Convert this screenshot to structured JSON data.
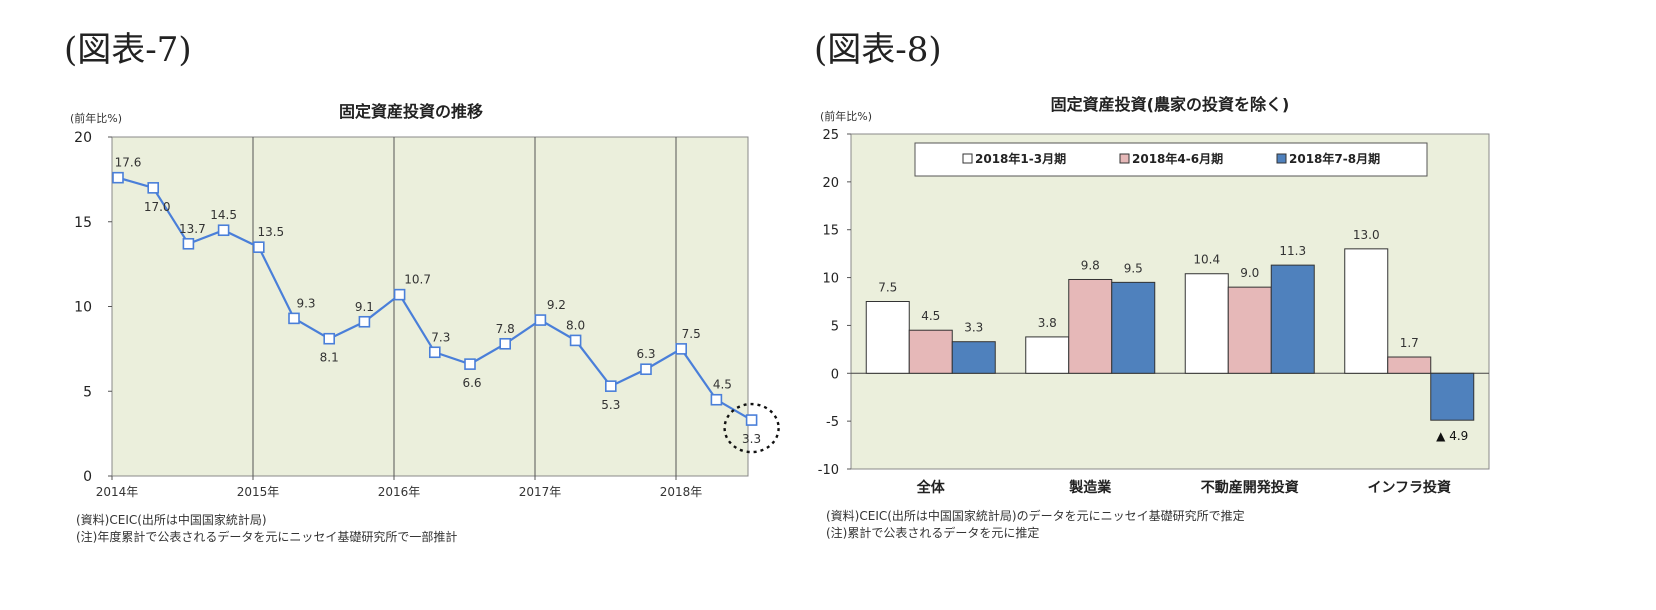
{
  "figures": [
    {
      "label": "(図表-7)"
    },
    {
      "label": "(図表-8)"
    }
  ],
  "chart_data": [
    {
      "type": "line",
      "title": "固定資産投資の推移",
      "ylabel": "(前年比%)",
      "xlabel": "",
      "ylim": [
        0,
        20
      ],
      "yticks": [
        0,
        5,
        10,
        15,
        20
      ],
      "xtick_labels": [
        "2014年",
        "2015年",
        "2016年",
        "2017年",
        "2018年"
      ],
      "grid": "vertical year separators",
      "series": [
        {
          "color": "#4a7fd9",
          "labels": [
            "17.6",
            "17.0",
            "13.7",
            "14.5",
            "13.5",
            "9.3",
            "8.1",
            "9.1",
            "10.7",
            "7.3",
            "6.6",
            "7.8",
            "9.2",
            "8.0",
            "5.3",
            "6.3",
            "7.5",
            "4.5",
            "3.3"
          ],
          "values": [
            17.6,
            17.0,
            13.7,
            14.5,
            13.5,
            9.3,
            8.1,
            9.1,
            10.7,
            7.3,
            6.6,
            7.8,
            9.2,
            8.0,
            5.3,
            6.3,
            7.5,
            4.5,
            3.3
          ]
        }
      ],
      "highlight": "last point circled (dotted)",
      "notes": [
        "(資料)CEIC(出所は中国国家統計局)",
        "(注)年度累計で公表されるデータを元にニッセイ基礎研究所で一部推計"
      ]
    },
    {
      "type": "bar",
      "title": "固定資産投資(農家の投資を除く)",
      "ylabel": "(前年比%)",
      "xlabel": "",
      "ylim": [
        -10,
        25
      ],
      "yticks": [
        -10,
        -5,
        0,
        5,
        10,
        15,
        20,
        25
      ],
      "categories": [
        "全体",
        "製造業",
        "不動産開発投資",
        "インフラ投資"
      ],
      "legend_position": "top",
      "series": [
        {
          "name": "2018年1-3月期",
          "color": "#ffffff",
          "values": [
            7.5,
            3.8,
            10.4,
            13.0
          ],
          "labels": [
            "7.5",
            "3.8",
            "10.4",
            "13.0"
          ]
        },
        {
          "name": "2018年4-6月期",
          "color": "#e6b8b8",
          "values": [
            4.5,
            9.8,
            9.0,
            1.7
          ],
          "labels": [
            "4.5",
            "9.8",
            "9.0",
            "1.7"
          ]
        },
        {
          "name": "2018年7-8月期",
          "color": "#4f81bd",
          "values": [
            3.3,
            9.5,
            11.3,
            -4.9
          ],
          "labels": [
            "3.3",
            "9.5",
            "11.3",
            "▲ 4.9"
          ]
        }
      ],
      "notes": [
        "(資料)CEIC(出所は中国国家統計局)のデータを元にニッセイ基礎研究所で推定",
        "(注)累計で公表されるデータを元に推定"
      ]
    }
  ]
}
